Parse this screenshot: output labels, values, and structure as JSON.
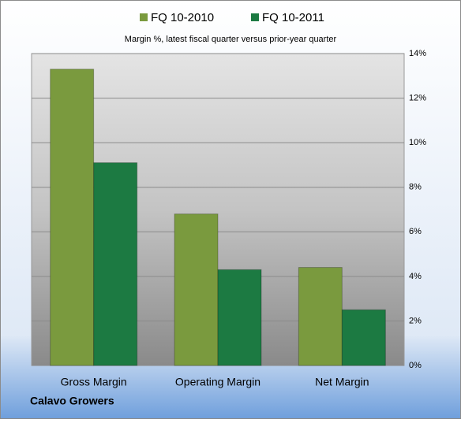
{
  "chart_data": {
    "type": "bar",
    "subtitle": "Margin %,  latest fiscal quarter versus prior-year quarter",
    "annotation": "Calavo Growers",
    "categories": [
      "Gross Margin",
      "Operating Margin",
      "Net Margin"
    ],
    "series": [
      {
        "name": "FQ 10-2010",
        "color": "#7a9a3e",
        "values": [
          13.3,
          6.8,
          4.4
        ]
      },
      {
        "name": "FQ 10-2011",
        "color": "#1c7a42",
        "values": [
          9.1,
          4.3,
          2.5
        ]
      }
    ],
    "ylim": [
      0,
      14
    ],
    "yticks": [
      {
        "value": 0,
        "label": "0%"
      },
      {
        "value": 2,
        "label": "2%"
      },
      {
        "value": 4,
        "label": "4%"
      },
      {
        "value": 6,
        "label": "6%"
      },
      {
        "value": 8,
        "label": "8%"
      },
      {
        "value": 10,
        "label": "10%"
      },
      {
        "value": 12,
        "label": "12%"
      },
      {
        "value": 14,
        "label": "14%"
      }
    ],
    "grid": true,
    "legend": "top"
  }
}
